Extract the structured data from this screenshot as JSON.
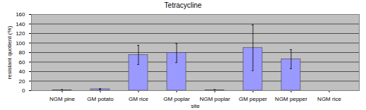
{
  "chart_data": {
    "type": "bar",
    "title": "Tetracycline",
    "x_label": "site",
    "y_label": "resistant quotient (%)",
    "categories": [
      "NGM pine",
      "GM potato",
      "GM rice",
      "GM poplar",
      "NGM poplar",
      "GM pepper",
      "NGM pepper",
      "NGM rice"
    ],
    "values": [
      1,
      3,
      75,
      79,
      1,
      90,
      66,
      0
    ],
    "errors": [
      1,
      1,
      20,
      20,
      1,
      48,
      20,
      0
    ],
    "color": "#9999ff",
    "ylim": [
      0,
      160
    ],
    "yticks": [
      0,
      20,
      40,
      60,
      80,
      100,
      120,
      140,
      160
    ],
    "grid": true
  }
}
